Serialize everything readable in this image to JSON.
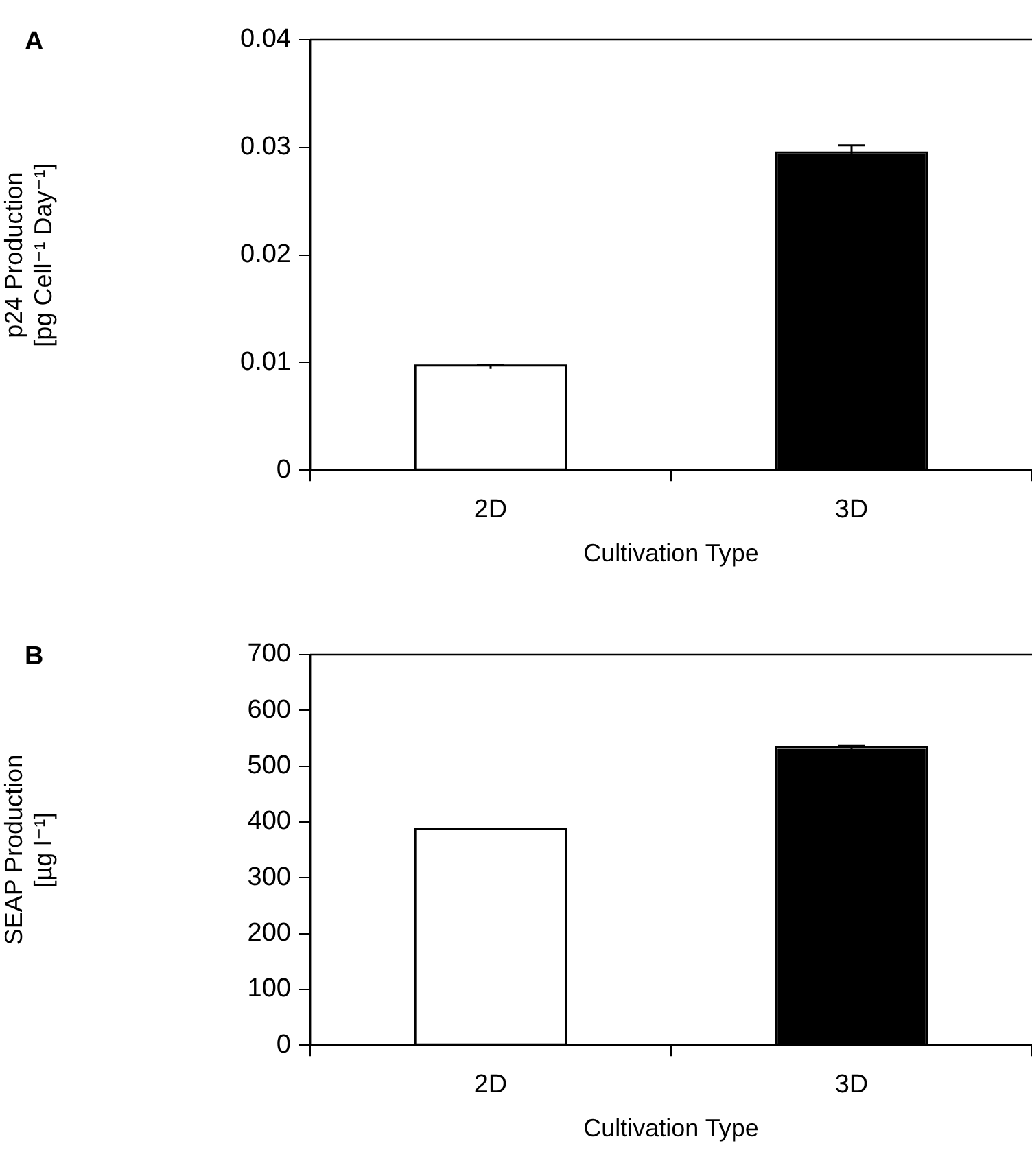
{
  "chart_data": [
    {
      "type": "bar",
      "annotations": [
        "A"
      ],
      "categories": [
        "2D",
        "3D"
      ],
      "values": [
        0.0096,
        0.0294
      ],
      "errors": [
        0.0002,
        0.0008
      ],
      "colors": [
        "#ffffff",
        "#000000"
      ],
      "xlabel": "Cultivation Type",
      "ylabel": "p24 Production\n[pg Cell⁻¹ Day⁻¹]",
      "ylim": [
        0,
        0.04
      ],
      "yticks": [
        0,
        0.01,
        0.02,
        0.03,
        0.04
      ],
      "grid": false,
      "legend": false
    },
    {
      "type": "bar",
      "annotations": [
        "B"
      ],
      "categories": [
        "2D",
        "3D"
      ],
      "values": [
        385,
        532
      ],
      "errors": [
        null,
        4
      ],
      "colors": [
        "#ffffff",
        "#000000"
      ],
      "xlabel": "Cultivation Type",
      "ylabel": "SEAP Production\n[µg l⁻¹]",
      "ylim": [
        0,
        700
      ],
      "yticks": [
        0,
        100,
        200,
        300,
        400,
        500,
        600,
        700
      ],
      "grid": false,
      "legend": false
    }
  ]
}
